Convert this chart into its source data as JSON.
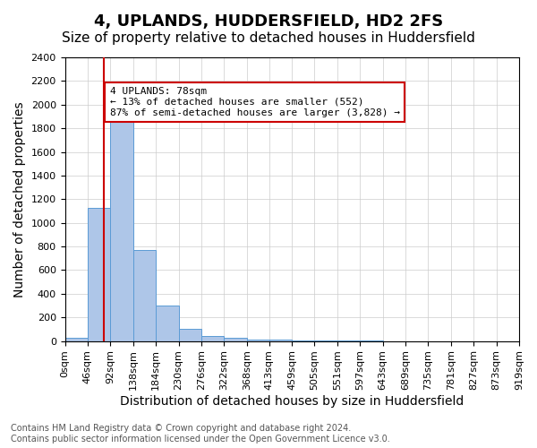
{
  "title": "4, UPLANDS, HUDDERSFIELD, HD2 2FS",
  "subtitle": "Size of property relative to detached houses in Huddersfield",
  "xlabel": "Distribution of detached houses by size in Huddersfield",
  "ylabel": "Number of detached properties",
  "bin_edges": [
    0,
    46,
    92,
    138,
    184,
    230,
    276,
    322,
    368,
    413,
    459,
    505,
    551,
    597,
    643,
    689,
    735,
    781,
    827,
    873,
    919
  ],
  "bar_heights": [
    30,
    1130,
    1950,
    770,
    300,
    100,
    45,
    25,
    15,
    10,
    5,
    2,
    1,
    1,
    0,
    0,
    0,
    0,
    0,
    0
  ],
  "bar_color": "#aec6e8",
  "bar_edgecolor": "#5b9bd5",
  "property_size": 78,
  "vline_color": "#cc0000",
  "annotation_text": "4 UPLANDS: 78sqm\n← 13% of detached houses are smaller (552)\n87% of semi-detached houses are larger (3,828) →",
  "annotation_box_color": "#cc0000",
  "annotation_text_color": "#000000",
  "ylim": [
    0,
    2400
  ],
  "yticks": [
    0,
    200,
    400,
    600,
    800,
    1000,
    1200,
    1400,
    1600,
    1800,
    2000,
    2200,
    2400
  ],
  "xtick_labels": [
    "0sqm",
    "46sqm",
    "92sqm",
    "138sqm",
    "184sqm",
    "230sqm",
    "276sqm",
    "322sqm",
    "368sqm",
    "413sqm",
    "459sqm",
    "505sqm",
    "551sqm",
    "597sqm",
    "643sqm",
    "689sqm",
    "735sqm",
    "781sqm",
    "827sqm",
    "873sqm",
    "919sqm"
  ],
  "footer_line1": "Contains HM Land Registry data © Crown copyright and database right 2024.",
  "footer_line2": "Contains public sector information licensed under the Open Government Licence v3.0.",
  "bg_color": "#ffffff",
  "grid_color": "#cccccc",
  "title_fontsize": 13,
  "subtitle_fontsize": 11,
  "axis_label_fontsize": 10,
  "tick_fontsize": 8,
  "footer_fontsize": 7
}
